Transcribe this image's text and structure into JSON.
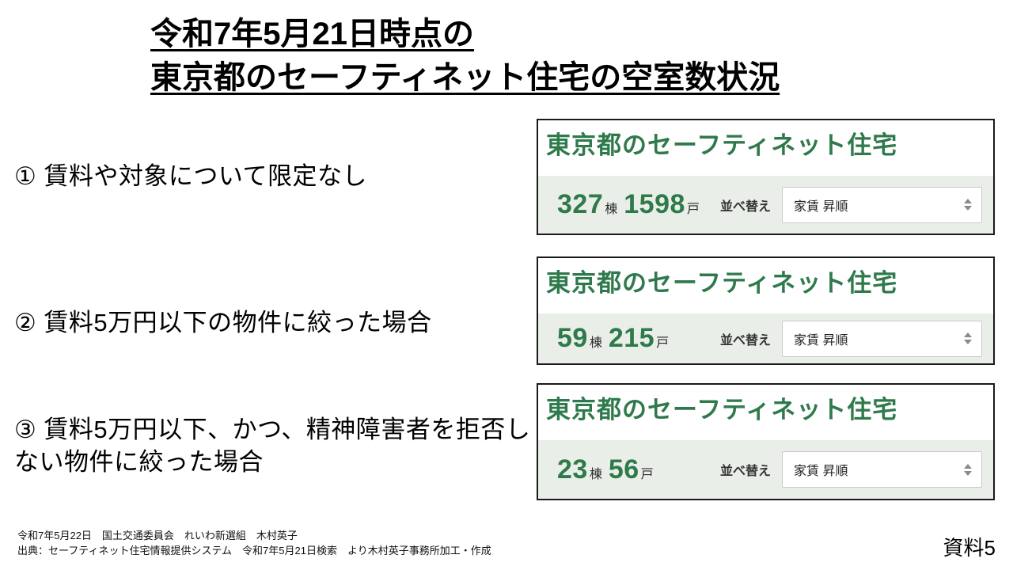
{
  "slide_title": {
    "line1": "令和7年5月21日時点の",
    "line2": "東京都のセーフティネット住宅の空室数状況"
  },
  "conditions": [
    {
      "label": "① 賃料や対象について限定なし"
    },
    {
      "label": "② 賃料5万円以下の物件に絞った場合"
    },
    {
      "label": "③ 賃料5万円以下、かつ、精神障害者を拒否しない物件に絞った場合"
    }
  ],
  "panels": [
    {
      "heading": "東京都のセーフティネット住宅",
      "buildings_count": "327",
      "buildings_unit": "棟",
      "rooms_count": "1598",
      "rooms_unit": "戸",
      "sort_label": "並べ替え",
      "sort_value": "家賃 昇順"
    },
    {
      "heading": "東京都のセーフティネット住宅",
      "buildings_count": "59",
      "buildings_unit": "棟",
      "rooms_count": "215",
      "rooms_unit": "戸",
      "sort_label": "並べ替え",
      "sort_value": "家賃 昇順"
    },
    {
      "heading": "東京都のセーフティネット住宅",
      "buildings_count": "23",
      "buildings_unit": "棟",
      "rooms_count": "56",
      "rooms_unit": "戸",
      "sort_label": "並べ替え",
      "sort_value": "家賃 昇順"
    }
  ],
  "footer": {
    "line1": "令和7年5月22日　国土交通委員会　れいわ新選組　木村英子",
    "line2": "出典：セーフティネット住宅情報提供システム　令和7年5月21日検索　より木村英子事務所加工・作成",
    "doc_label": "資料5"
  },
  "colors": {
    "heading_green": "#2f7a4c",
    "count_green": "#2e7a4a",
    "band_background": "#e9efe8",
    "panel_border": "#1a1a1a",
    "select_border": "#c9c9c9",
    "spinner_gray": "#8a8a8a"
  }
}
